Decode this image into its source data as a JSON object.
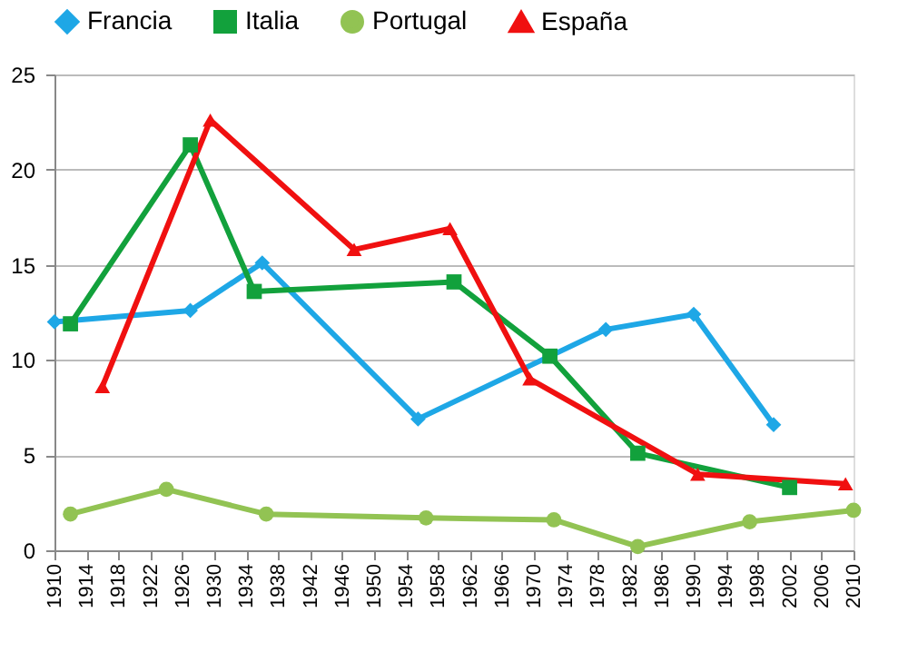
{
  "chart_data": {
    "type": "line",
    "xlim": [
      1910,
      2010
    ],
    "xticks": [
      1910,
      1914,
      1918,
      1922,
      1926,
      1930,
      1934,
      1938,
      1942,
      1946,
      1950,
      1954,
      1958,
      1962,
      1966,
      1970,
      1974,
      1978,
      1982,
      1986,
      1990,
      1994,
      1998,
      2002,
      2006,
      2010
    ],
    "ylim": [
      0,
      25
    ],
    "yticks": [
      0,
      5,
      10,
      15,
      20,
      25
    ],
    "grid": "y",
    "legend": "top",
    "line_style": "solid",
    "series": [
      {
        "name": "Francia",
        "color": "#1ea7e6",
        "marker": "diamond",
        "x": [
          1910,
          1927,
          1936,
          1955.5,
          1979,
          1990,
          2000
        ],
        "values": [
          12.0,
          12.6,
          15.1,
          6.9,
          11.6,
          12.4,
          6.6
        ]
      },
      {
        "name": "Italia",
        "color": "#12a13c",
        "marker": "square",
        "x": [
          1912,
          1927,
          1935,
          1960,
          1972,
          1983,
          2002
        ],
        "values": [
          11.9,
          21.3,
          13.6,
          14.1,
          10.2,
          5.1,
          3.3
        ]
      },
      {
        "name": "Portugal",
        "color": "#92c353",
        "marker": "circle",
        "x": [
          1912,
          1924,
          1936.5,
          1956.5,
          1972.5,
          1983,
          1997,
          2010
        ],
        "values": [
          1.9,
          3.2,
          1.9,
          1.7,
          1.6,
          0.2,
          1.5,
          2.1
        ]
      },
      {
        "name": "España",
        "color": "#f01010",
        "marker": "triangle",
        "x": [
          1916,
          1929.5,
          1947.5,
          1959.5,
          1969.5,
          1990.5,
          2009
        ],
        "values": [
          8.6,
          22.6,
          15.8,
          16.9,
          9.0,
          4.0,
          3.5
        ]
      }
    ]
  }
}
